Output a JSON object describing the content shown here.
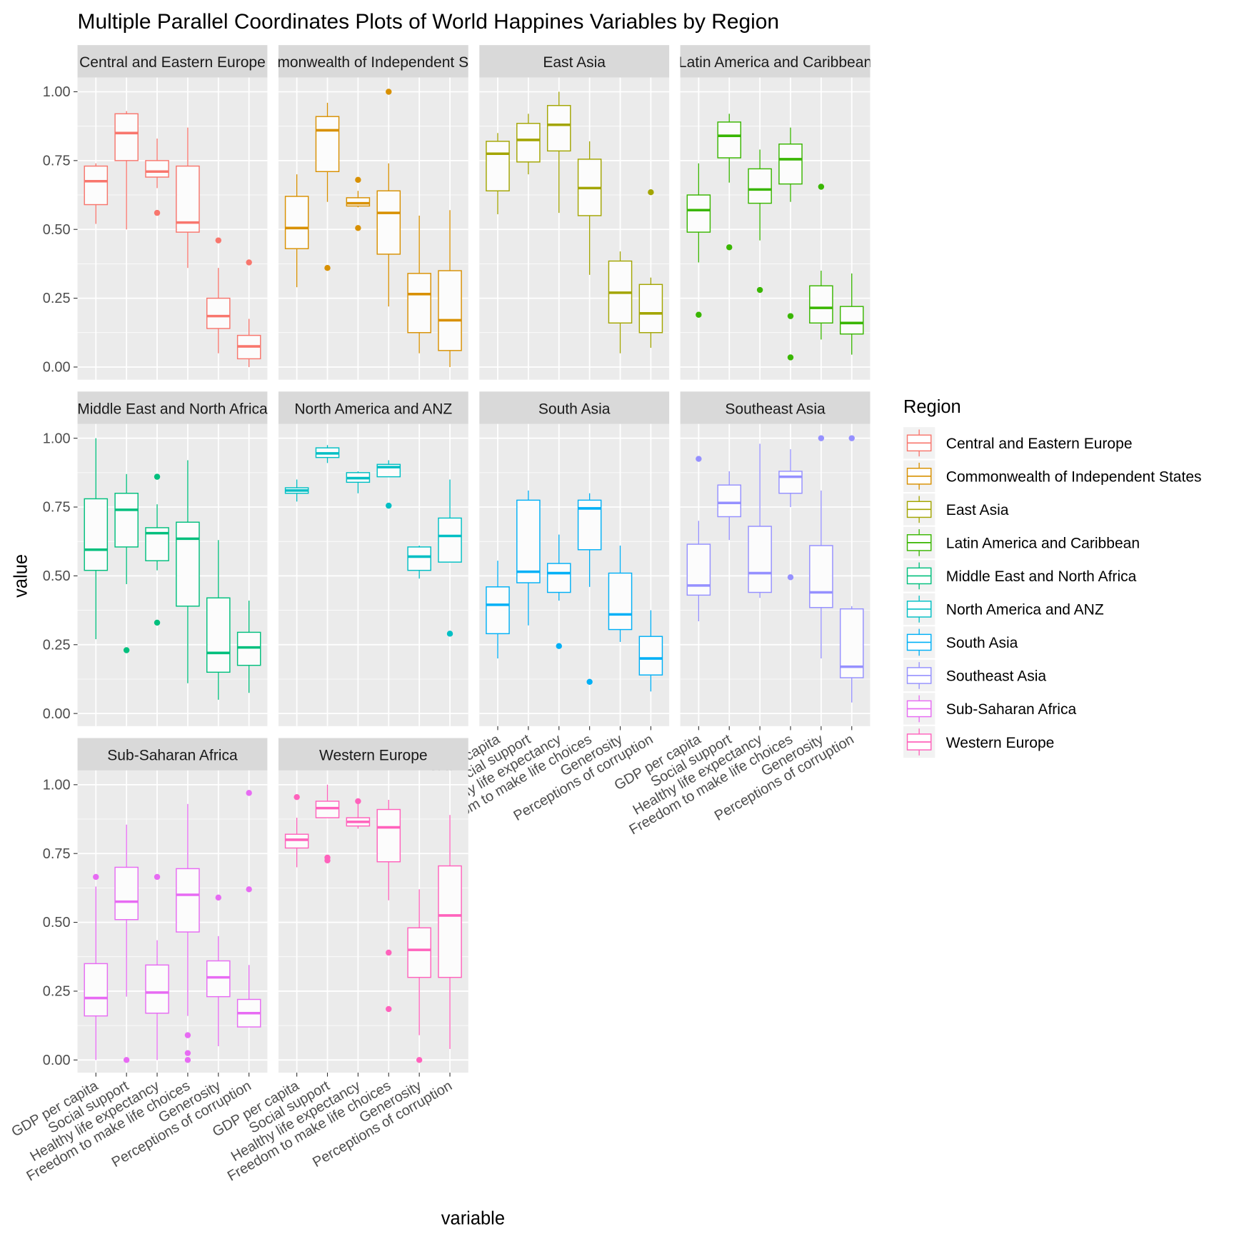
{
  "chart_data": {
    "type": "boxplot",
    "title": "Multiple Parallel Coordinates Plots of World Happines Variables by Region",
    "xlabel": "variable",
    "ylabel": "value",
    "ylim": [
      0,
      1
    ],
    "yticks": [
      "0.00",
      "0.25",
      "0.50",
      "0.75",
      "1.00"
    ],
    "grid": true,
    "legend_position": "right",
    "legend_title": "Region",
    "categories": [
      "GDP per capita",
      "Social support",
      "Healthy life expectancy",
      "Freedom to make life choices",
      "Generosity",
      "Perceptions of corruption"
    ],
    "box_fields": [
      "whisker_low",
      "q1",
      "median",
      "q3",
      "whisker_high"
    ],
    "panels": [
      {
        "name": "Central and Eastern Europe",
        "color": "#F8766D",
        "boxes": [
          {
            "stats": [
              0.52,
              0.59,
              0.675,
              0.73,
              0.74
            ],
            "outliers": []
          },
          {
            "stats": [
              0.5,
              0.75,
              0.85,
              0.92,
              0.93
            ],
            "outliers": []
          },
          {
            "stats": [
              0.65,
              0.69,
              0.71,
              0.75,
              0.83
            ],
            "outliers": [
              0.56
            ]
          },
          {
            "stats": [
              0.36,
              0.49,
              0.525,
              0.73,
              0.87
            ],
            "outliers": []
          },
          {
            "stats": [
              0.05,
              0.14,
              0.185,
              0.25,
              0.36
            ],
            "outliers": [
              0.46
            ]
          },
          {
            "stats": [
              0.0,
              0.03,
              0.075,
              0.115,
              0.175
            ],
            "outliers": [
              0.38
            ]
          }
        ]
      },
      {
        "name": "Commonwealth of Independent States",
        "color": "#D89000",
        "boxes": [
          {
            "stats": [
              0.29,
              0.43,
              0.505,
              0.62,
              0.7
            ],
            "outliers": []
          },
          {
            "stats": [
              0.6,
              0.71,
              0.86,
              0.91,
              0.96
            ],
            "outliers": [
              0.36
            ]
          },
          {
            "stats": [
              0.58,
              0.585,
              0.595,
              0.615,
              0.64
            ],
            "outliers": [
              0.68,
              0.505
            ]
          },
          {
            "stats": [
              0.22,
              0.41,
              0.56,
              0.64,
              0.74
            ],
            "outliers": [
              1.0
            ]
          },
          {
            "stats": [
              0.05,
              0.125,
              0.265,
              0.34,
              0.55
            ],
            "outliers": []
          },
          {
            "stats": [
              0.0,
              0.06,
              0.17,
              0.35,
              0.57
            ],
            "outliers": []
          }
        ]
      },
      {
        "name": "East Asia",
        "color": "#A3A500",
        "boxes": [
          {
            "stats": [
              0.555,
              0.64,
              0.775,
              0.82,
              0.85
            ],
            "outliers": []
          },
          {
            "stats": [
              0.7,
              0.745,
              0.825,
              0.885,
              0.92
            ],
            "outliers": []
          },
          {
            "stats": [
              0.56,
              0.785,
              0.88,
              0.95,
              1.0
            ],
            "outliers": []
          },
          {
            "stats": [
              0.335,
              0.55,
              0.65,
              0.755,
              0.82
            ],
            "outliers": []
          },
          {
            "stats": [
              0.05,
              0.16,
              0.27,
              0.385,
              0.42
            ],
            "outliers": []
          },
          {
            "stats": [
              0.07,
              0.125,
              0.195,
              0.3,
              0.325
            ],
            "outliers": [
              0.635
            ]
          }
        ]
      },
      {
        "name": "Latin America and Caribbean",
        "color": "#39B600",
        "boxes": [
          {
            "stats": [
              0.38,
              0.49,
              0.57,
              0.625,
              0.74
            ],
            "outliers": [
              0.19
            ]
          },
          {
            "stats": [
              0.67,
              0.76,
              0.84,
              0.89,
              0.92
            ],
            "outliers": [
              0.435
            ]
          },
          {
            "stats": [
              0.46,
              0.595,
              0.645,
              0.72,
              0.79
            ],
            "outliers": [
              0.28
            ]
          },
          {
            "stats": [
              0.6,
              0.665,
              0.755,
              0.81,
              0.87
            ],
            "outliers": [
              0.185,
              0.035
            ]
          },
          {
            "stats": [
              0.1,
              0.16,
              0.215,
              0.295,
              0.35
            ],
            "outliers": [
              0.655
            ]
          },
          {
            "stats": [
              0.045,
              0.12,
              0.16,
              0.22,
              0.34
            ],
            "outliers": []
          }
        ]
      },
      {
        "name": "Middle East and North Africa",
        "color": "#00BF7D",
        "boxes": [
          {
            "stats": [
              0.27,
              0.52,
              0.595,
              0.78,
              1.0
            ],
            "outliers": []
          },
          {
            "stats": [
              0.47,
              0.605,
              0.74,
              0.8,
              0.87
            ],
            "outliers": [
              0.23
            ]
          },
          {
            "stats": [
              0.52,
              0.555,
              0.655,
              0.675,
              0.76
            ],
            "outliers": [
              0.86,
              0.33
            ]
          },
          {
            "stats": [
              0.11,
              0.39,
              0.635,
              0.695,
              0.92
            ],
            "outliers": []
          },
          {
            "stats": [
              0.05,
              0.15,
              0.22,
              0.42,
              0.63
            ],
            "outliers": []
          },
          {
            "stats": [
              0.075,
              0.175,
              0.24,
              0.295,
              0.41
            ],
            "outliers": []
          }
        ]
      },
      {
        "name": "North America and ANZ",
        "color": "#00BFC4",
        "boxes": [
          {
            "stats": [
              0.77,
              0.8,
              0.81,
              0.82,
              0.85
            ],
            "outliers": []
          },
          {
            "stats": [
              0.91,
              0.93,
              0.945,
              0.965,
              0.975
            ],
            "outliers": []
          },
          {
            "stats": [
              0.8,
              0.84,
              0.855,
              0.875,
              0.88
            ],
            "outliers": []
          },
          {
            "stats": [
              0.86,
              0.86,
              0.895,
              0.905,
              0.92
            ],
            "outliers": [
              0.755
            ]
          },
          {
            "stats": [
              0.49,
              0.52,
              0.57,
              0.605,
              0.61
            ],
            "outliers": []
          },
          {
            "stats": [
              0.55,
              0.55,
              0.645,
              0.71,
              0.85
            ],
            "outliers": [
              0.29
            ]
          }
        ]
      },
      {
        "name": "South Asia",
        "color": "#00B0F6",
        "boxes": [
          {
            "stats": [
              0.2,
              0.29,
              0.395,
              0.46,
              0.555
            ],
            "outliers": []
          },
          {
            "stats": [
              0.32,
              0.475,
              0.515,
              0.775,
              0.81
            ],
            "outliers": []
          },
          {
            "stats": [
              0.41,
              0.44,
              0.51,
              0.545,
              0.65
            ],
            "outliers": [
              0.245
            ]
          },
          {
            "stats": [
              0.46,
              0.595,
              0.745,
              0.775,
              0.8
            ],
            "outliers": [
              0.115
            ]
          },
          {
            "stats": [
              0.26,
              0.305,
              0.36,
              0.51,
              0.61
            ],
            "outliers": []
          },
          {
            "stats": [
              0.08,
              0.14,
              0.2,
              0.28,
              0.375
            ],
            "outliers": []
          }
        ]
      },
      {
        "name": "Southeast Asia",
        "color": "#9590FF",
        "boxes": [
          {
            "stats": [
              0.335,
              0.43,
              0.465,
              0.615,
              0.7
            ],
            "outliers": [
              0.925
            ]
          },
          {
            "stats": [
              0.63,
              0.715,
              0.765,
              0.83,
              0.88
            ],
            "outliers": []
          },
          {
            "stats": [
              0.42,
              0.44,
              0.51,
              0.68,
              0.98
            ],
            "outliers": []
          },
          {
            "stats": [
              0.75,
              0.8,
              0.86,
              0.88,
              0.96
            ],
            "outliers": [
              0.495
            ]
          },
          {
            "stats": [
              0.2,
              0.385,
              0.44,
              0.61,
              0.81
            ],
            "outliers": [
              1.0
            ]
          },
          {
            "stats": [
              0.04,
              0.13,
              0.17,
              0.38,
              0.39
            ],
            "outliers": [
              1.0
            ]
          }
        ]
      },
      {
        "name": "Sub-Saharan Africa",
        "color": "#E76BF3",
        "boxes": [
          {
            "stats": [
              0.0,
              0.16,
              0.225,
              0.35,
              0.63
            ],
            "outliers": [
              0.665
            ]
          },
          {
            "stats": [
              0.23,
              0.51,
              0.575,
              0.7,
              0.855
            ],
            "outliers": [
              0.0
            ]
          },
          {
            "stats": [
              0.0,
              0.17,
              0.245,
              0.345,
              0.435
            ],
            "outliers": [
              0.665
            ]
          },
          {
            "stats": [
              0.16,
              0.465,
              0.6,
              0.695,
              0.93
            ],
            "outliers": [
              0.09,
              0.025,
              0.0
            ]
          },
          {
            "stats": [
              0.05,
              0.23,
              0.3,
              0.36,
              0.45
            ],
            "outliers": [
              0.59
            ]
          },
          {
            "stats": [
              0.12,
              0.12,
              0.17,
              0.22,
              0.345
            ],
            "outliers": [
              0.62,
              0.97
            ]
          }
        ]
      },
      {
        "name": "Western Europe",
        "color": "#FF62BC",
        "boxes": [
          {
            "stats": [
              0.7,
              0.77,
              0.8,
              0.82,
              0.88
            ],
            "outliers": [
              0.955
            ]
          },
          {
            "stats": [
              0.88,
              0.88,
              0.915,
              0.94,
              1.0
            ],
            "outliers": [
              0.735,
              0.725
            ]
          },
          {
            "stats": [
              0.84,
              0.85,
              0.865,
              0.88,
              0.93
            ],
            "outliers": [
              0.94
            ]
          },
          {
            "stats": [
              0.58,
              0.72,
              0.845,
              0.91,
              0.945
            ],
            "outliers": [
              0.39,
              0.185
            ]
          },
          {
            "stats": [
              0.09,
              0.3,
              0.4,
              0.48,
              0.62
            ],
            "outliers": [
              0.0
            ]
          },
          {
            "stats": [
              0.04,
              0.3,
              0.525,
              0.705,
              0.89
            ],
            "outliers": []
          }
        ]
      }
    ]
  }
}
